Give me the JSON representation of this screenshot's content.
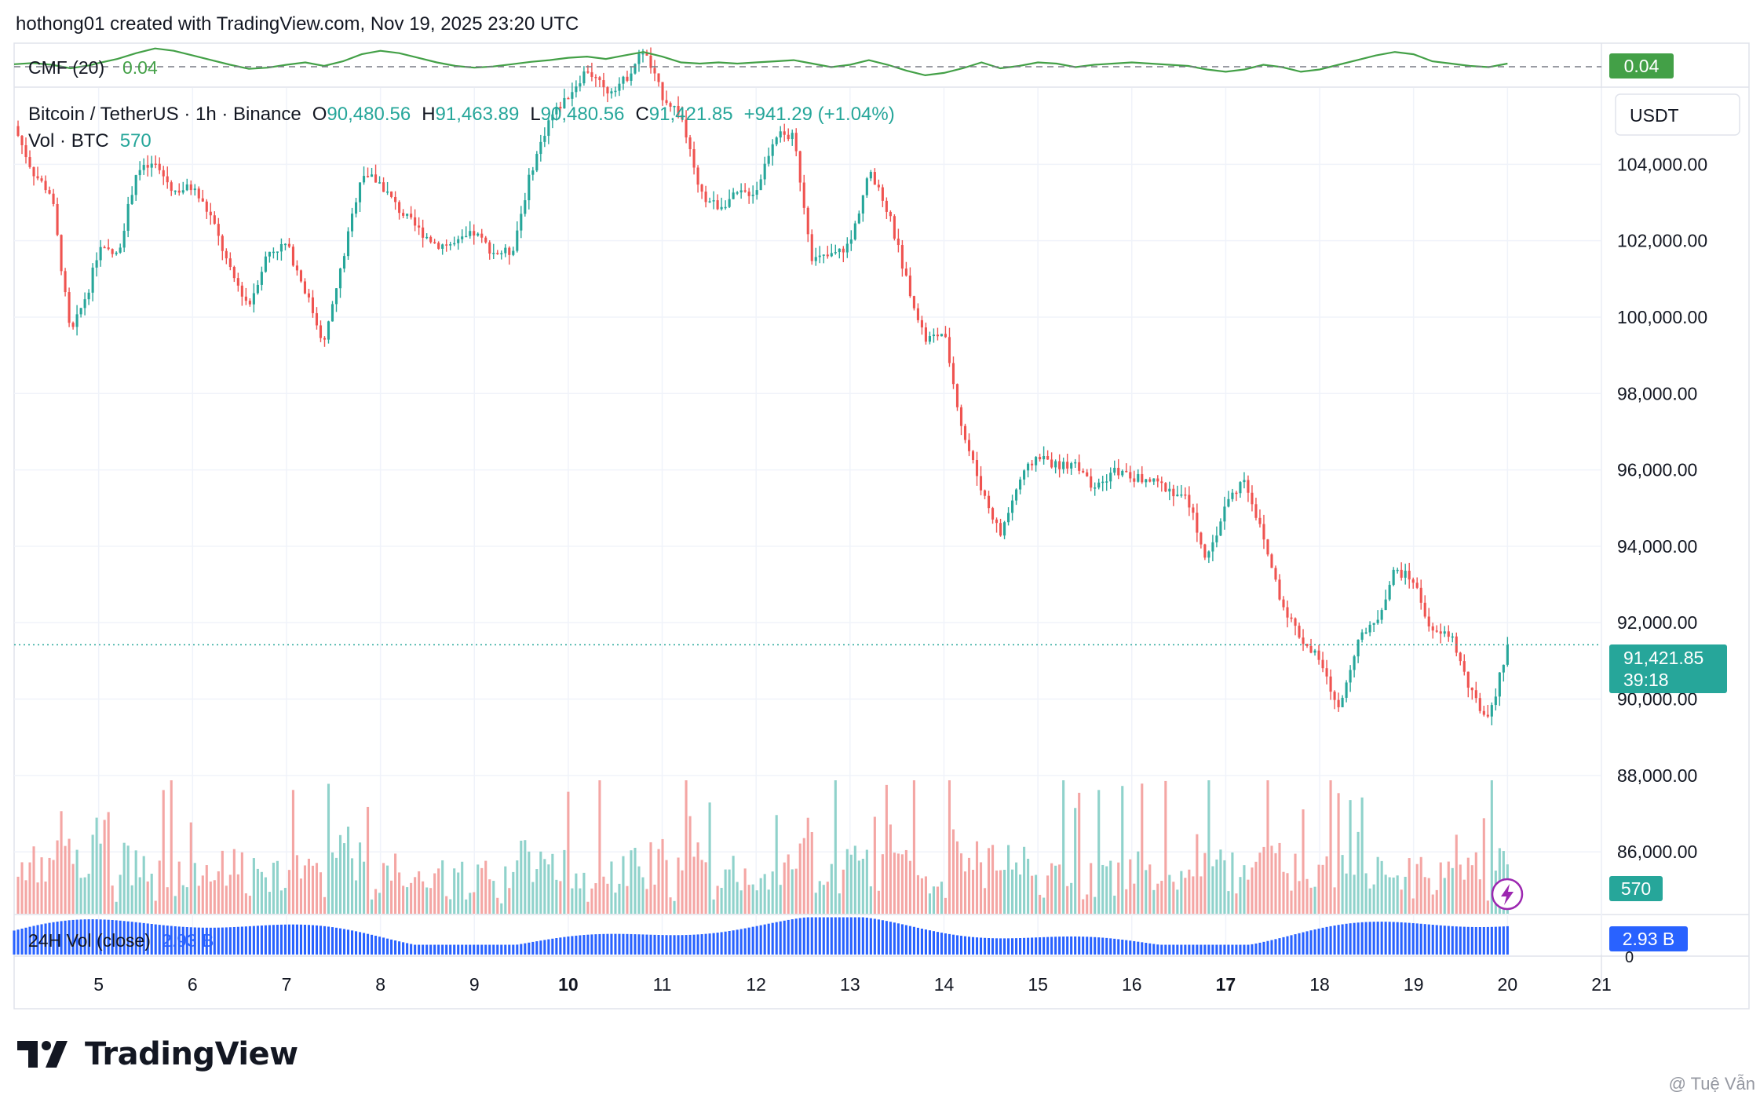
{
  "header": {
    "publisher": "hothong01 created with TradingView.com, Nov 19, 2025 23:20 UTC"
  },
  "cmf": {
    "label": "CMF (20)",
    "value": "0.04",
    "badge": "0.04",
    "color": "#43a047"
  },
  "legend": {
    "symbol": "Bitcoin / TetherUS · 1h · Binance",
    "o_key": "O",
    "o_val": "90,480.56",
    "h_key": "H",
    "h_val": "91,463.89",
    "l_key": "L",
    "l_val": "90,480.56",
    "c_key": "C",
    "c_val": "91,421.85",
    "change": "+941.29 (+1.04%)",
    "vol_label": "Vol · BTC",
    "vol_val": "570"
  },
  "currency": "USDT",
  "price_badge": {
    "price": "91,421.85",
    "countdown": "39:18"
  },
  "vol_badge": "570",
  "vol24": {
    "label": "24H Vol (close)",
    "value": "2.93 B",
    "badge": "2.93 B",
    "axis_zero": "0"
  },
  "colors": {
    "up": "#26a69a",
    "down": "#ef5350",
    "vol_up": "#8fd2cb",
    "vol_down": "#f4a6a4",
    "vol24": "#2962ff",
    "cmf": "#43a047"
  },
  "footer": {
    "brand": "TradingView",
    "watermark": "@ Tuệ Vẫn"
  },
  "chart_data": {
    "type": "line",
    "title": "Bitcoin / TetherUS · 1h · Binance",
    "xlabel": "",
    "ylabel": "",
    "x_ticks": [
      "5",
      "6",
      "7",
      "8",
      "9",
      "10",
      "11",
      "12",
      "13",
      "14",
      "15",
      "16",
      "17",
      "18",
      "19",
      "20",
      "21"
    ],
    "x_ticks_bold": [
      "10",
      "17"
    ],
    "y_ticks": [
      "104,000.00",
      "102,000.00",
      "100,000.00",
      "98,000.00",
      "96,000.00",
      "94,000.00",
      "92,000.00",
      "90,000.00",
      "88,000.00",
      "86,000.00"
    ],
    "y_tick_values": [
      104000,
      102000,
      100000,
      98000,
      96000,
      94000,
      92000,
      90000,
      88000,
      86000
    ],
    "ylim": [
      84400,
      106000
    ],
    "xlim": [
      4.1,
      21.0
    ],
    "grid": true,
    "last_price": 91421.85,
    "series": [
      {
        "name": "Bitcoin / TetherUS",
        "x": [
          4.1,
          4.3,
          4.5,
          4.7,
          4.9,
          5.0,
          5.2,
          5.4,
          5.6,
          5.8,
          6.0,
          6.2,
          6.4,
          6.6,
          6.8,
          7.0,
          7.2,
          7.4,
          7.6,
          7.8,
          8.0,
          8.2,
          8.4,
          8.6,
          8.8,
          9.0,
          9.2,
          9.4,
          9.6,
          9.8,
          10.0,
          10.2,
          10.4,
          10.6,
          10.8,
          11.0,
          11.2,
          11.4,
          11.6,
          11.8,
          12.0,
          12.2,
          12.4,
          12.6,
          12.8,
          13.0,
          13.2,
          13.4,
          13.6,
          13.8,
          14.0,
          14.2,
          14.4,
          14.6,
          14.8,
          15.0,
          15.2,
          15.4,
          15.6,
          15.8,
          16.0,
          16.2,
          16.4,
          16.6,
          16.8,
          17.0,
          17.2,
          17.4,
          17.6,
          17.8,
          18.0,
          18.2,
          18.4,
          18.6,
          18.8,
          19.0,
          19.2,
          19.4,
          19.6,
          19.8,
          20.0
        ],
        "values": [
          105000,
          103800,
          103200,
          99500,
          100800,
          101800,
          101600,
          103800,
          104000,
          103300,
          103400,
          102600,
          101200,
          100300,
          101700,
          101900,
          100700,
          99300,
          101500,
          103800,
          103500,
          102800,
          102300,
          101900,
          101900,
          102200,
          101700,
          101700,
          103800,
          105200,
          105800,
          106500,
          105900,
          106200,
          107000,
          105800,
          105300,
          103200,
          102900,
          103200,
          103300,
          104800,
          104700,
          101500,
          101600,
          101900,
          103800,
          102800,
          101000,
          99400,
          99600,
          97000,
          95500,
          94300,
          95700,
          96400,
          96100,
          96200,
          95400,
          96000,
          95800,
          95700,
          95500,
          95200,
          93600,
          95100,
          95800,
          94200,
          92500,
          91600,
          91000,
          89700,
          91500,
          92000,
          93400,
          93100,
          91700,
          91700,
          90200,
          89400,
          91421.85
        ]
      }
    ],
    "cmf": {
      "name": "CMF (20)",
      "values": [
        0.03,
        0.05,
        0.02,
        -0.04,
        0.01,
        0.05,
        0.12,
        0.22,
        0.3,
        0.26,
        0.18,
        0.1,
        0.02,
        -0.05,
        -0.03,
        0.02,
        0.06,
        0.0,
        0.08,
        0.2,
        0.26,
        0.22,
        0.14,
        0.06,
        0.0,
        -0.03,
        -0.01,
        0.03,
        0.07,
        0.1,
        0.14,
        0.16,
        0.12,
        0.18,
        0.24,
        0.16,
        0.06,
        0.04,
        0.06,
        0.04,
        0.06,
        0.08,
        0.1,
        0.04,
        -0.02,
        0.02,
        0.1,
        0.02,
        -0.08,
        -0.16,
        -0.12,
        -0.04,
        0.06,
        -0.04,
        0.0,
        0.06,
        0.04,
        -0.02,
        0.02,
        0.04,
        0.06,
        0.04,
        0.02,
        0.0,
        -0.06,
        -0.1,
        -0.06,
        0.02,
        -0.02,
        -0.1,
        -0.06,
        0.02,
        0.1,
        0.18,
        0.24,
        0.2,
        0.08,
        0.04,
        0.0,
        -0.02,
        0.04
      ],
      "ylim": [
        -0.35,
        0.35
      ]
    },
    "volume24h": {
      "name": "24H Vol (close)",
      "last": 2.93,
      "unit": "B"
    }
  }
}
